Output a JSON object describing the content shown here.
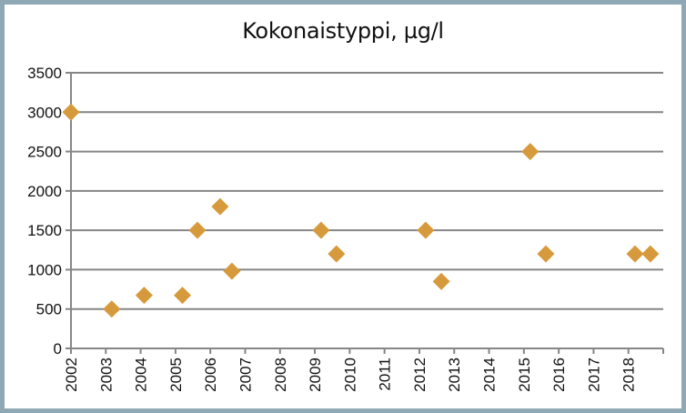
{
  "chart_data": {
    "type": "scatter",
    "title": "Kokonaistyppi, µg/l",
    "xlabel": "",
    "ylabel": "",
    "xlim": [
      2002,
      2019
    ],
    "ylim": [
      0,
      3500
    ],
    "y_ticks": [
      0,
      500,
      1000,
      1500,
      2000,
      2500,
      3000,
      3500
    ],
    "x_tick_labels": [
      "2002",
      "2003",
      "2004",
      "2005",
      "2006",
      "2007",
      "2008",
      "2009",
      "2010",
      "2011",
      "2012",
      "2013",
      "2014",
      "2015",
      "2016",
      "2017",
      "2018"
    ],
    "grid": "horizontal",
    "legend": null,
    "marker": "diamond",
    "marker_color": "#D69A3C",
    "series": [
      {
        "name": "Kokonaistyppi",
        "points": [
          {
            "x": 2002.0,
            "y": 3000
          },
          {
            "x": 2003.17,
            "y": 500
          },
          {
            "x": 2004.1,
            "y": 675
          },
          {
            "x": 2005.2,
            "y": 675
          },
          {
            "x": 2005.63,
            "y": 1500
          },
          {
            "x": 2006.28,
            "y": 1800
          },
          {
            "x": 2006.62,
            "y": 980
          },
          {
            "x": 2009.18,
            "y": 1500
          },
          {
            "x": 2009.62,
            "y": 1200
          },
          {
            "x": 2012.18,
            "y": 1500
          },
          {
            "x": 2012.63,
            "y": 850
          },
          {
            "x": 2015.18,
            "y": 2500
          },
          {
            "x": 2015.63,
            "y": 1200
          },
          {
            "x": 2018.19,
            "y": 1200
          },
          {
            "x": 2018.63,
            "y": 1200
          }
        ]
      }
    ]
  },
  "colors": {
    "border": "#8EA9B5",
    "grid": "#868686",
    "marker": "#D69A3C"
  }
}
